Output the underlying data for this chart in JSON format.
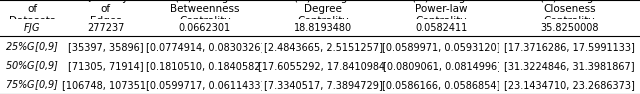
{
  "col_headers": [
    "Name\nof\nDatasets",
    "Quantity\nof\nEdges",
    "(%)Average\nBetweenness\nCentrality",
    "(%)Average\nDegree\nCentrality",
    "(%)Average\nPower-law\nCentrality",
    "(%)Average\nCloseness\nCentrality"
  ],
  "rows": [
    [
      "$FJG$",
      "277237",
      "0.0662301",
      "18.8193480",
      "0.0582411",
      "35.8250008"
    ],
    [
      "25%$G$[0,9]",
      "[35397, 35896]",
      "[0.0774914, 0.0830326]",
      "[2.4843665, 2.5151257]",
      "[0.0589971, 0.0593120]",
      "[17.3716286, 17.5991133]"
    ],
    [
      "50%$G$[0,9]",
      "[71305, 71914]",
      "[0.1810510, 0.1840582]",
      "[17.6055292, 17.8410984]",
      "[0.0809061, 0.0814996]",
      "[31.3224846, 31.3981867]"
    ],
    [
      "75%$G$[0,9]",
      "[106748, 107351]",
      "[0.0599717, 0.0611433]",
      "[7.3340517, 7.3894729]",
      "[0.0586166, 0.0586854]",
      "[23.1434710, 23.2686373]"
    ]
  ],
  "header_fontsize": 7.5,
  "cell_fontsize": 7.0,
  "bg_color": "#ffffff",
  "line_color": "#000000"
}
